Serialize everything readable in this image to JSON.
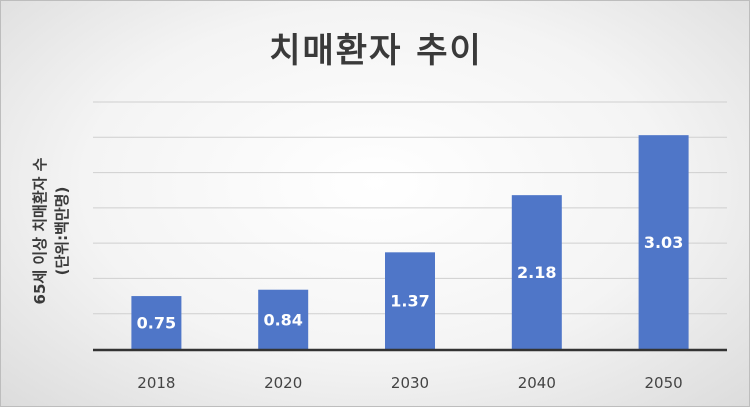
{
  "chart_data": {
    "type": "bar",
    "title": "치매환자 추이",
    "xlabel": "",
    "ylabel": "65세 이상 치매환자 수",
    "ylabel_unit": "(단위:백만명)",
    "categories": [
      "2018",
      "2020",
      "2030",
      "2040",
      "2050"
    ],
    "values": [
      0.75,
      0.84,
      1.37,
      2.18,
      3.03
    ],
    "data_labels": [
      "0.75",
      "0.84",
      "1.37",
      "2.18",
      "3.03"
    ],
    "ylim": [
      0,
      3.5
    ],
    "grid": true,
    "legend": "none",
    "bar_color": "#4f76c8"
  }
}
